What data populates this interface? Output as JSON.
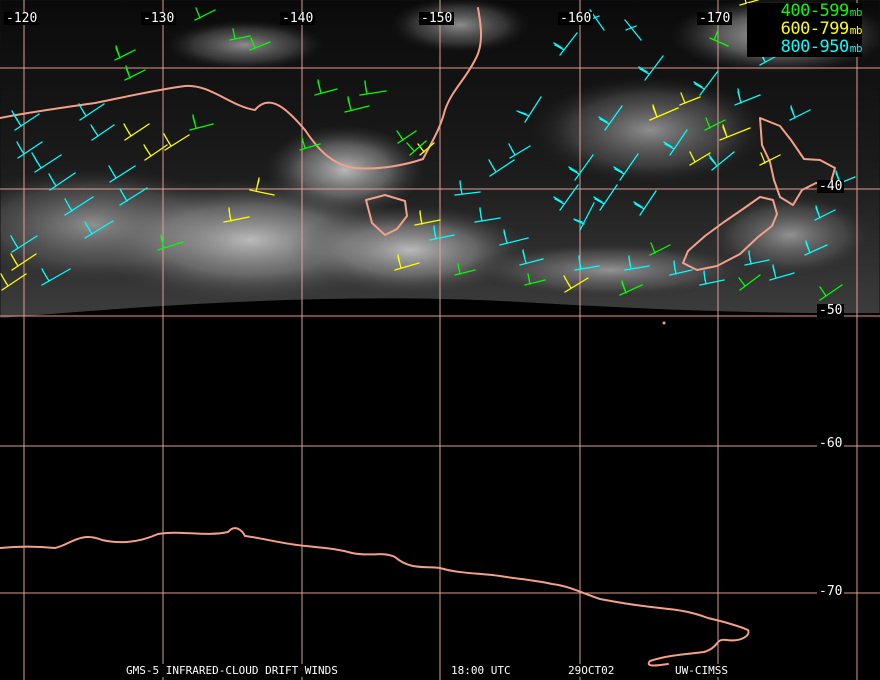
{
  "map": {
    "longitude_labels": [
      "-120",
      "-130",
      "-140",
      "-150",
      "-160",
      "-170"
    ],
    "latitude_labels": [
      "-40",
      "-50",
      "-60",
      "-70"
    ],
    "legend": [
      {
        "range": "400-599",
        "unit": "mb",
        "color": "#00ff00"
      },
      {
        "range": "600-799",
        "unit": "mb",
        "color": "#ffff00"
      },
      {
        "range": "800-950",
        "unit": "mb",
        "color": "#00ffff"
      }
    ],
    "footer": {
      "product": "GMS-5 INFRARED-CLOUD DRIFT WINDS",
      "time": "18:00 UTC",
      "date": "29OCT02",
      "source": "UW-CIMSS"
    },
    "colors": {
      "grid": "#e9a493",
      "coastline": "#f3a08a",
      "background": "#000000",
      "cloud": "#8d8d8d",
      "ocean_sat": "#111111"
    }
  }
}
